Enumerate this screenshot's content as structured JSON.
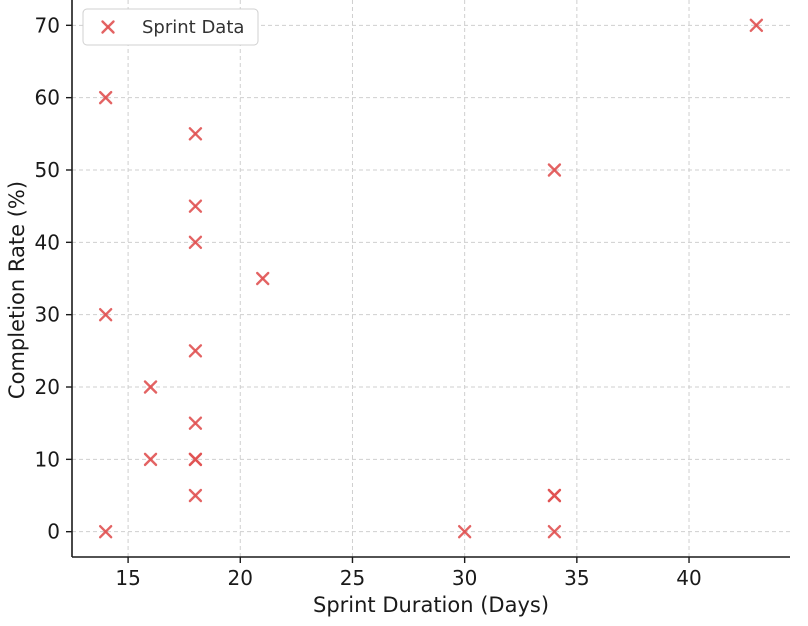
{
  "chart_data": {
    "type": "scatter",
    "title": "",
    "xlabel": "Sprint Duration (Days)",
    "ylabel": "Completion Rate (%)",
    "xlim": [
      12.5,
      44.5
    ],
    "ylim": [
      -3.5,
      73.5
    ],
    "xticks": [
      15,
      20,
      25,
      30,
      35,
      40
    ],
    "yticks": [
      0,
      10,
      20,
      30,
      40,
      50,
      60,
      70
    ],
    "grid": true,
    "legend_position": "top-left",
    "marker": "x",
    "series": [
      {
        "name": "Sprint Data",
        "color": "#e05252",
        "points": [
          {
            "x": 14,
            "y": 60
          },
          {
            "x": 14,
            "y": 30
          },
          {
            "x": 14,
            "y": 0
          },
          {
            "x": 16,
            "y": 20
          },
          {
            "x": 16,
            "y": 10
          },
          {
            "x": 18,
            "y": 55
          },
          {
            "x": 18,
            "y": 45
          },
          {
            "x": 18,
            "y": 40
          },
          {
            "x": 18,
            "y": 25
          },
          {
            "x": 18,
            "y": 15
          },
          {
            "x": 18,
            "y": 10
          },
          {
            "x": 18,
            "y": 10
          },
          {
            "x": 18,
            "y": 5
          },
          {
            "x": 21,
            "y": 35
          },
          {
            "x": 30,
            "y": 0
          },
          {
            "x": 34,
            "y": 50
          },
          {
            "x": 34,
            "y": 5
          },
          {
            "x": 34,
            "y": 5
          },
          {
            "x": 34,
            "y": 0
          },
          {
            "x": 43,
            "y": 70
          }
        ]
      }
    ]
  }
}
